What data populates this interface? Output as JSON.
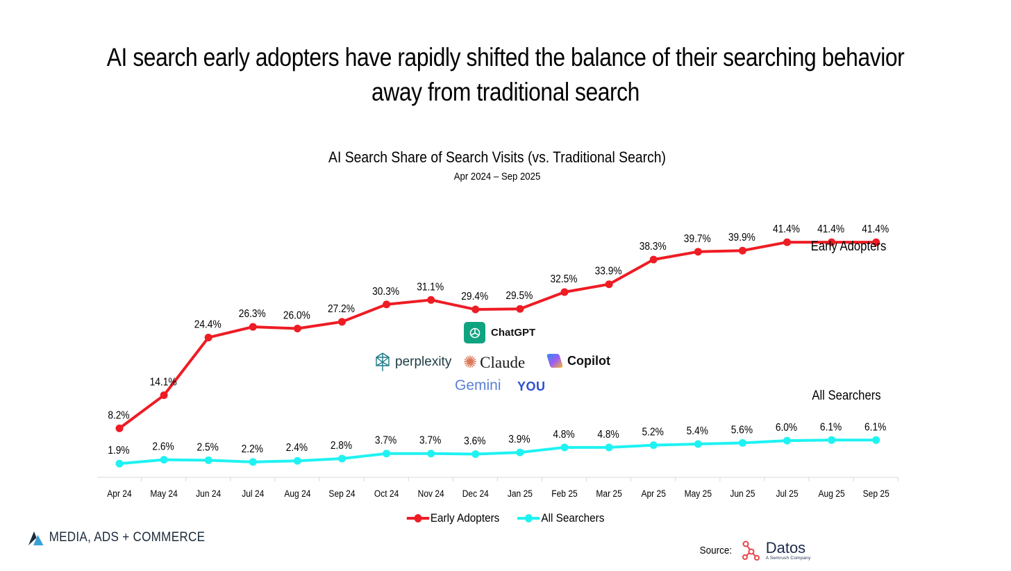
{
  "headline": {
    "line1": "AI search early adopters have rapidly shifted the balance of their searching behavior",
    "line2": "away from traditional search"
  },
  "chart_data": {
    "type": "line",
    "title": "AI Search Share of Search Visits (vs. Traditional Search)",
    "subtitle": "Apr 2024 – Sep 2025",
    "categories": [
      "Apr 24",
      "May 24",
      "Jun 24",
      "Jul 24",
      "Aug 24",
      "Sep 24",
      "Oct 24",
      "Nov 24",
      "Dec 24",
      "Jan 25",
      "Feb 25",
      "Mar 25",
      "Apr 25",
      "May 25",
      "Jun 25",
      "Jul 25",
      "Aug 25",
      "Sep 25"
    ],
    "series": [
      {
        "name": "Early Adopters",
        "color": "#ee1c24",
        "values": [
          8.2,
          14.1,
          24.4,
          26.3,
          26.0,
          27.2,
          30.3,
          31.1,
          29.4,
          29.5,
          32.5,
          33.9,
          38.3,
          39.7,
          39.9,
          41.4,
          41.4,
          41.4
        ],
        "labels": [
          "8.2%",
          "14.1%",
          "24.4%",
          "26.3%",
          "26.0%",
          "27.2%",
          "30.3%",
          "31.1%",
          "29.4%",
          "29.5%",
          "32.5%",
          "33.9%",
          "38.3%",
          "39.7%",
          "39.9%",
          "41.4%",
          "41.4%",
          "41.4%"
        ]
      },
      {
        "name": "All Searchers",
        "color": "#1ff2f2",
        "values": [
          1.9,
          2.6,
          2.5,
          2.2,
          2.4,
          2.8,
          3.7,
          3.7,
          3.6,
          3.9,
          4.8,
          4.8,
          5.2,
          5.4,
          5.6,
          6.0,
          6.1,
          6.1
        ],
        "labels": [
          "1.9%",
          "2.6%",
          "2.5%",
          "2.2%",
          "2.4%",
          "2.8%",
          "3.7%",
          "3.7%",
          "3.6%",
          "3.9%",
          "4.8%",
          "4.8%",
          "5.2%",
          "5.4%",
          "5.6%",
          "6.0%",
          "6.1%",
          "6.1%"
        ]
      }
    ],
    "ylim": [
      0,
      45
    ],
    "grid": false,
    "legend": "bottom"
  },
  "annotations": {
    "early_adopters": "Early Adopters",
    "all_searchers": "All Searchers"
  },
  "logos": {
    "chatgpt": "ChatGPT",
    "perplexity": "perplexity",
    "claude": "Claude",
    "copilot": "Copilot",
    "gemini": "Gemini",
    "you": "YOU"
  },
  "footer": {
    "brand": "MEDIA, ADS + COMMERCE",
    "source_label": "Source:",
    "source_name": "Datos",
    "source_sub": "A Semrush Company"
  }
}
